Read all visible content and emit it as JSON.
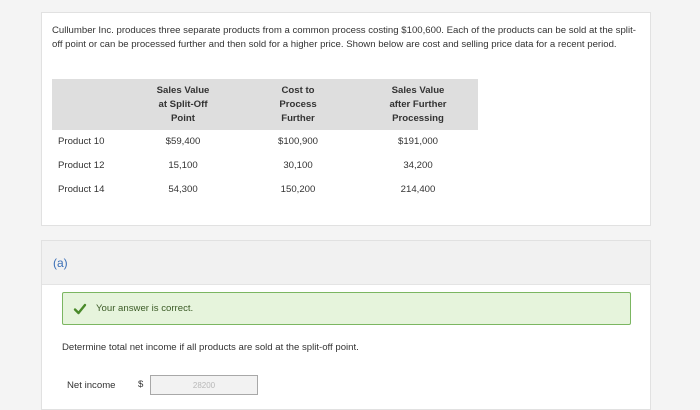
{
  "problem": {
    "intro": "Cullumber Inc. produces three separate products from a common process costing $100,600. Each of the products can be sold at the split-off point or can be processed further and then sold for a higher price. Shown below are cost and selling price data for a recent period.",
    "table": {
      "headers": [
        "",
        "Sales Value at Split-Off Point",
        "Cost to Process Further",
        "Sales Value after Further Processing"
      ],
      "rows": [
        {
          "product": "Product 10",
          "split_off": "$59,400",
          "cost": "$100,900",
          "after": "$191,000"
        },
        {
          "product": "Product 12",
          "split_off": "15,100",
          "cost": "30,100",
          "after": "34,200"
        },
        {
          "product": "Product 14",
          "split_off": "54,300",
          "cost": "150,200",
          "after": "214,400"
        }
      ]
    }
  },
  "part": {
    "label": "(a)",
    "feedback": "Your answer is correct.",
    "question": "Determine total net income if all products are sold at the split-off point.",
    "net_income_label": "Net income",
    "currency": "$",
    "net_income_value": "28200"
  },
  "colors": {
    "accent": "#3a6fb7",
    "success_bg": "#e6f4dc",
    "success_border": "#7bb661",
    "check": "#4a8a2a"
  },
  "icons": {
    "feedback": "checkmark-icon"
  }
}
